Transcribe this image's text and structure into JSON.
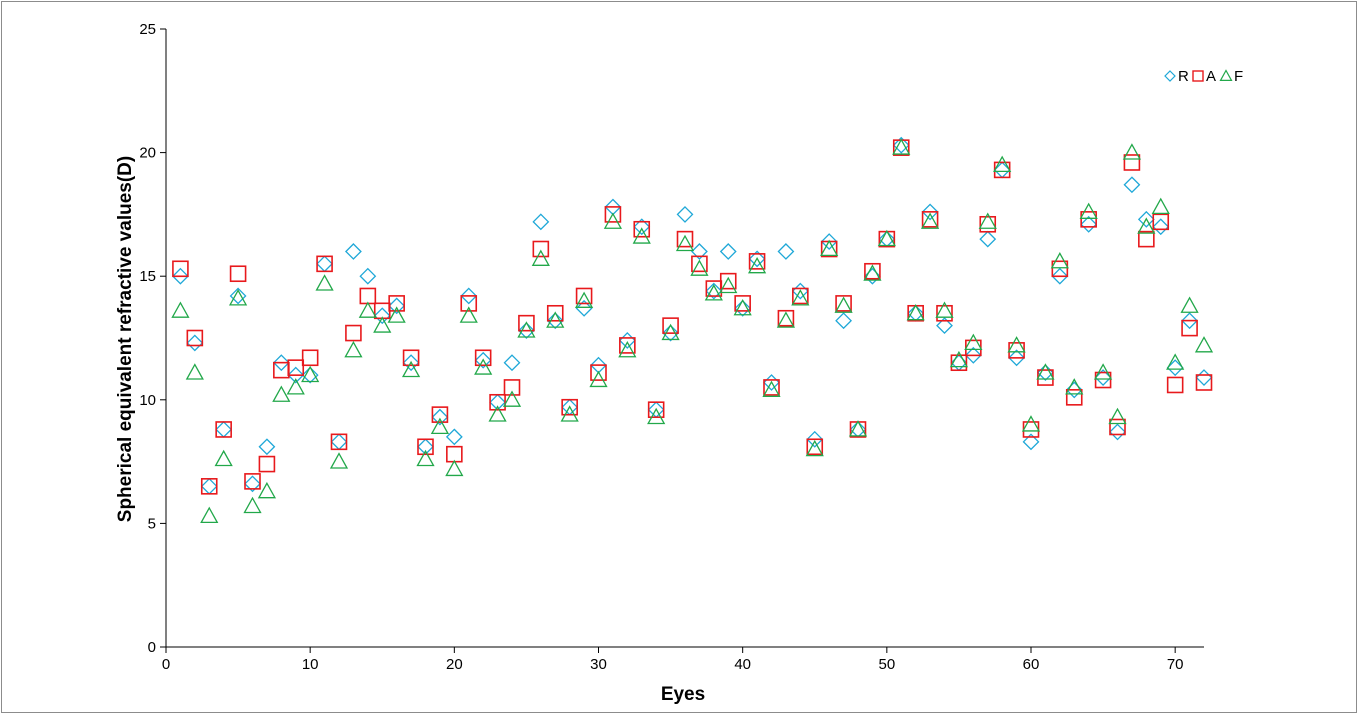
{
  "chart_data": {
    "type": "scatter",
    "title": "",
    "xlabel": "Eyes",
    "ylabel": "Spherical equivalent refractive values(D)",
    "xlim": [
      0,
      72
    ],
    "ylim": [
      0,
      25
    ],
    "xticks": [
      0,
      10,
      20,
      30,
      40,
      50,
      60,
      70
    ],
    "yticks": [
      0,
      5,
      10,
      15,
      20,
      25
    ],
    "grid": false,
    "legend_position": "top-right",
    "x": [
      1,
      2,
      3,
      4,
      5,
      6,
      7,
      8,
      9,
      10,
      11,
      12,
      13,
      14,
      15,
      16,
      17,
      18,
      19,
      20,
      21,
      22,
      23,
      24,
      25,
      26,
      27,
      28,
      29,
      30,
      31,
      32,
      33,
      34,
      35,
      36,
      37,
      38,
      39,
      40,
      41,
      42,
      43,
      44,
      45,
      46,
      47,
      48,
      49,
      50,
      51,
      52,
      53,
      54,
      55,
      56,
      57,
      58,
      59,
      60,
      61,
      62,
      63,
      64,
      65,
      66,
      67,
      68,
      69,
      70,
      71,
      72
    ],
    "series": [
      {
        "name": "R",
        "marker": "diamond",
        "color": "#1fa8d8",
        "values": [
          15.0,
          12.3,
          6.5,
          8.8,
          14.2,
          6.6,
          8.1,
          11.5,
          11.0,
          11.0,
          15.5,
          8.3,
          16.0,
          15.0,
          13.4,
          13.8,
          11.5,
          8.1,
          9.3,
          8.5,
          14.2,
          11.6,
          9.9,
          11.5,
          12.8,
          17.2,
          13.2,
          9.7,
          13.7,
          11.4,
          17.8,
          12.4,
          17.0,
          9.6,
          12.7,
          17.5,
          16.0,
          14.4,
          16.0,
          13.7,
          15.7,
          10.7,
          16.0,
          14.4,
          8.4,
          16.4,
          13.2,
          8.8,
          15.0,
          16.5,
          20.3,
          13.5,
          17.6,
          13.0,
          11.5,
          11.8,
          16.5,
          19.3,
          11.7,
          8.3,
          11.1,
          15.0,
          10.4,
          17.1,
          10.9,
          8.7,
          18.7,
          17.3,
          17.0,
          11.3,
          13.2,
          10.9
        ]
      },
      {
        "name": "A",
        "marker": "square",
        "color": "#e8191c",
        "values": [
          15.3,
          12.5,
          6.5,
          8.8,
          15.1,
          6.7,
          7.4,
          11.2,
          11.3,
          11.7,
          15.5,
          8.3,
          12.7,
          14.2,
          13.6,
          13.9,
          11.7,
          8.1,
          9.4,
          7.8,
          13.9,
          11.7,
          9.9,
          10.5,
          13.1,
          16.1,
          13.5,
          9.7,
          14.2,
          11.1,
          17.5,
          12.2,
          16.9,
          9.6,
          13.0,
          16.5,
          15.5,
          14.5,
          14.8,
          13.9,
          15.6,
          10.5,
          13.3,
          14.2,
          8.1,
          16.1,
          13.9,
          8.8,
          15.2,
          16.5,
          20.2,
          13.5,
          17.3,
          13.5,
          11.5,
          12.1,
          17.1,
          19.3,
          12.0,
          8.8,
          10.9,
          15.3,
          10.1,
          17.3,
          10.8,
          8.9,
          19.6,
          16.5,
          17.2,
          10.6,
          12.9,
          10.7
        ]
      },
      {
        "name": "F",
        "marker": "triangle",
        "color": "#22a84a",
        "values": [
          13.6,
          11.1,
          5.3,
          7.6,
          14.1,
          5.7,
          6.3,
          10.2,
          10.5,
          11.0,
          14.7,
          7.5,
          12.0,
          13.6,
          13.0,
          13.4,
          11.2,
          7.6,
          8.9,
          7.2,
          13.4,
          11.3,
          9.4,
          10.0,
          12.8,
          15.7,
          13.2,
          9.4,
          14.0,
          10.8,
          17.2,
          12.0,
          16.6,
          9.3,
          12.7,
          16.3,
          15.3,
          14.3,
          14.6,
          13.7,
          15.4,
          10.4,
          13.2,
          14.1,
          8.0,
          16.1,
          13.8,
          8.8,
          15.1,
          16.5,
          20.2,
          13.5,
          17.2,
          13.6,
          11.6,
          12.3,
          17.2,
          19.5,
          12.2,
          9.0,
          11.1,
          15.6,
          10.5,
          17.6,
          11.1,
          9.3,
          20.0,
          17.0,
          17.8,
          11.5,
          13.8,
          12.2
        ]
      }
    ]
  }
}
